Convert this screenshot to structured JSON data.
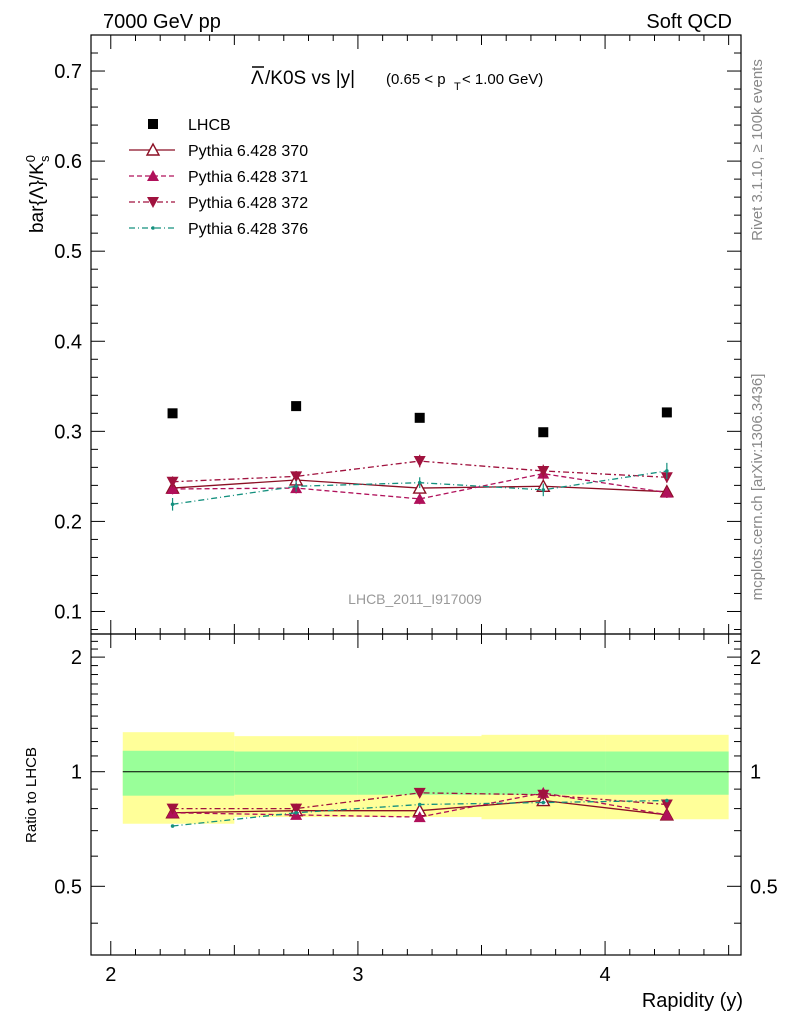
{
  "header": {
    "left": "7000 GeV pp",
    "right": "Soft QCD"
  },
  "side_labels": {
    "rivet": "Rivet 3.1.10, ≥ 100k events",
    "mcplots": "mcplots.cern.ch [arXiv:1306.3436]"
  },
  "colors": {
    "data": "#000000",
    "p370": "#8b0f24",
    "p371": "#b0105a",
    "p372": "#a0123e",
    "p376": "#14907e",
    "band_inner": "#99ff99",
    "band_outer": "#ffff99"
  },
  "chart_data": [
    {
      "type": "scatter",
      "title_main": "Λ/K0S vs |y|",
      "title_overline_char": "Λ",
      "title_rest": "/K0S vs |y|",
      "title_cut": "(0.65 < p",
      "title_cut_sub": "T",
      "title_cut_end": " < 1.00 GeV)",
      "watermark": "LHCB_2011_I917009",
      "ylabel": "bar{Λ}/K",
      "ylabel_sup": "0",
      "ylabel_sub": "s",
      "xlim": [
        1.92,
        4.55
      ],
      "ylim": [
        0.075,
        0.74
      ],
      "yticks": [
        0.1,
        0.2,
        0.3,
        0.4,
        0.5,
        0.6,
        0.7
      ],
      "ytick_labels": [
        "0.1",
        "0.2",
        "0.3",
        "0.4",
        "0.5",
        "0.6",
        "0.7"
      ],
      "legend_position": "top-left",
      "x": [
        2.25,
        2.75,
        3.25,
        3.75,
        4.25
      ],
      "series": [
        {
          "name": "LHCB",
          "key": "data",
          "values": [
            0.32,
            0.328,
            0.315,
            0.299,
            0.321
          ],
          "errors": [
            0,
            0,
            0,
            0,
            0
          ]
        },
        {
          "name": "Pythia 6.428 370",
          "key": "p370",
          "values": [
            0.237,
            0.246,
            0.237,
            0.239,
            0.233
          ],
          "errors": [
            0.006,
            0.006,
            0.006,
            0.006,
            0.006
          ]
        },
        {
          "name": "Pythia 6.428 371",
          "key": "p371",
          "values": [
            0.236,
            0.237,
            0.225,
            0.253,
            0.232
          ],
          "errors": [
            0.006,
            0.006,
            0.006,
            0.007,
            0.006
          ]
        },
        {
          "name": "Pythia 6.428 372",
          "key": "p372",
          "values": [
            0.244,
            0.25,
            0.267,
            0.256,
            0.249
          ],
          "errors": [
            0.006,
            0.006,
            0.007,
            0.007,
            0.006
          ]
        },
        {
          "name": "Pythia 6.428 376",
          "key": "p376",
          "values": [
            0.219,
            0.239,
            0.243,
            0.235,
            0.256
          ],
          "errors": [
            0.007,
            0.006,
            0.006,
            0.007,
            0.009
          ]
        }
      ]
    },
    {
      "type": "scatter",
      "ylabel": "Ratio to LHCB",
      "xlabel": "Rapidity (y)",
      "xlim": [
        1.92,
        4.55
      ],
      "ylim": [
        0.33,
        2.3
      ],
      "log_y": true,
      "yticks": [
        0.5,
        1,
        2
      ],
      "ytick_labels": [
        "0.5",
        "1",
        "2"
      ],
      "xticks": [
        2,
        3,
        4
      ],
      "xtick_labels": [
        "2",
        "3",
        "4"
      ],
      "x": [
        2.25,
        2.75,
        3.25,
        3.75,
        4.25
      ],
      "bins": [
        [
          2.0,
          2.5
        ],
        [
          2.5,
          3.0
        ],
        [
          3.0,
          3.5
        ],
        [
          3.5,
          4.0
        ],
        [
          4.0,
          4.5
        ]
      ],
      "band_inner_half": [
        0.135,
        0.13,
        0.13,
        0.13,
        0.13
      ],
      "band_outer_half": [
        0.27,
        0.24,
        0.24,
        0.25,
        0.25
      ],
      "series": [
        {
          "name": "Pythia 6.428 370",
          "key": "p370",
          "values": [
            0.78,
            0.79,
            0.79,
            0.84,
            0.77
          ]
        },
        {
          "name": "Pythia 6.428 371",
          "key": "p371",
          "values": [
            0.78,
            0.77,
            0.76,
            0.88,
            0.77
          ]
        },
        {
          "name": "Pythia 6.428 372",
          "key": "p372",
          "values": [
            0.8,
            0.8,
            0.88,
            0.87,
            0.82
          ]
        },
        {
          "name": "Pythia 6.428 376",
          "key": "p376",
          "values": [
            0.72,
            0.78,
            0.82,
            0.83,
            0.84
          ]
        }
      ]
    }
  ]
}
